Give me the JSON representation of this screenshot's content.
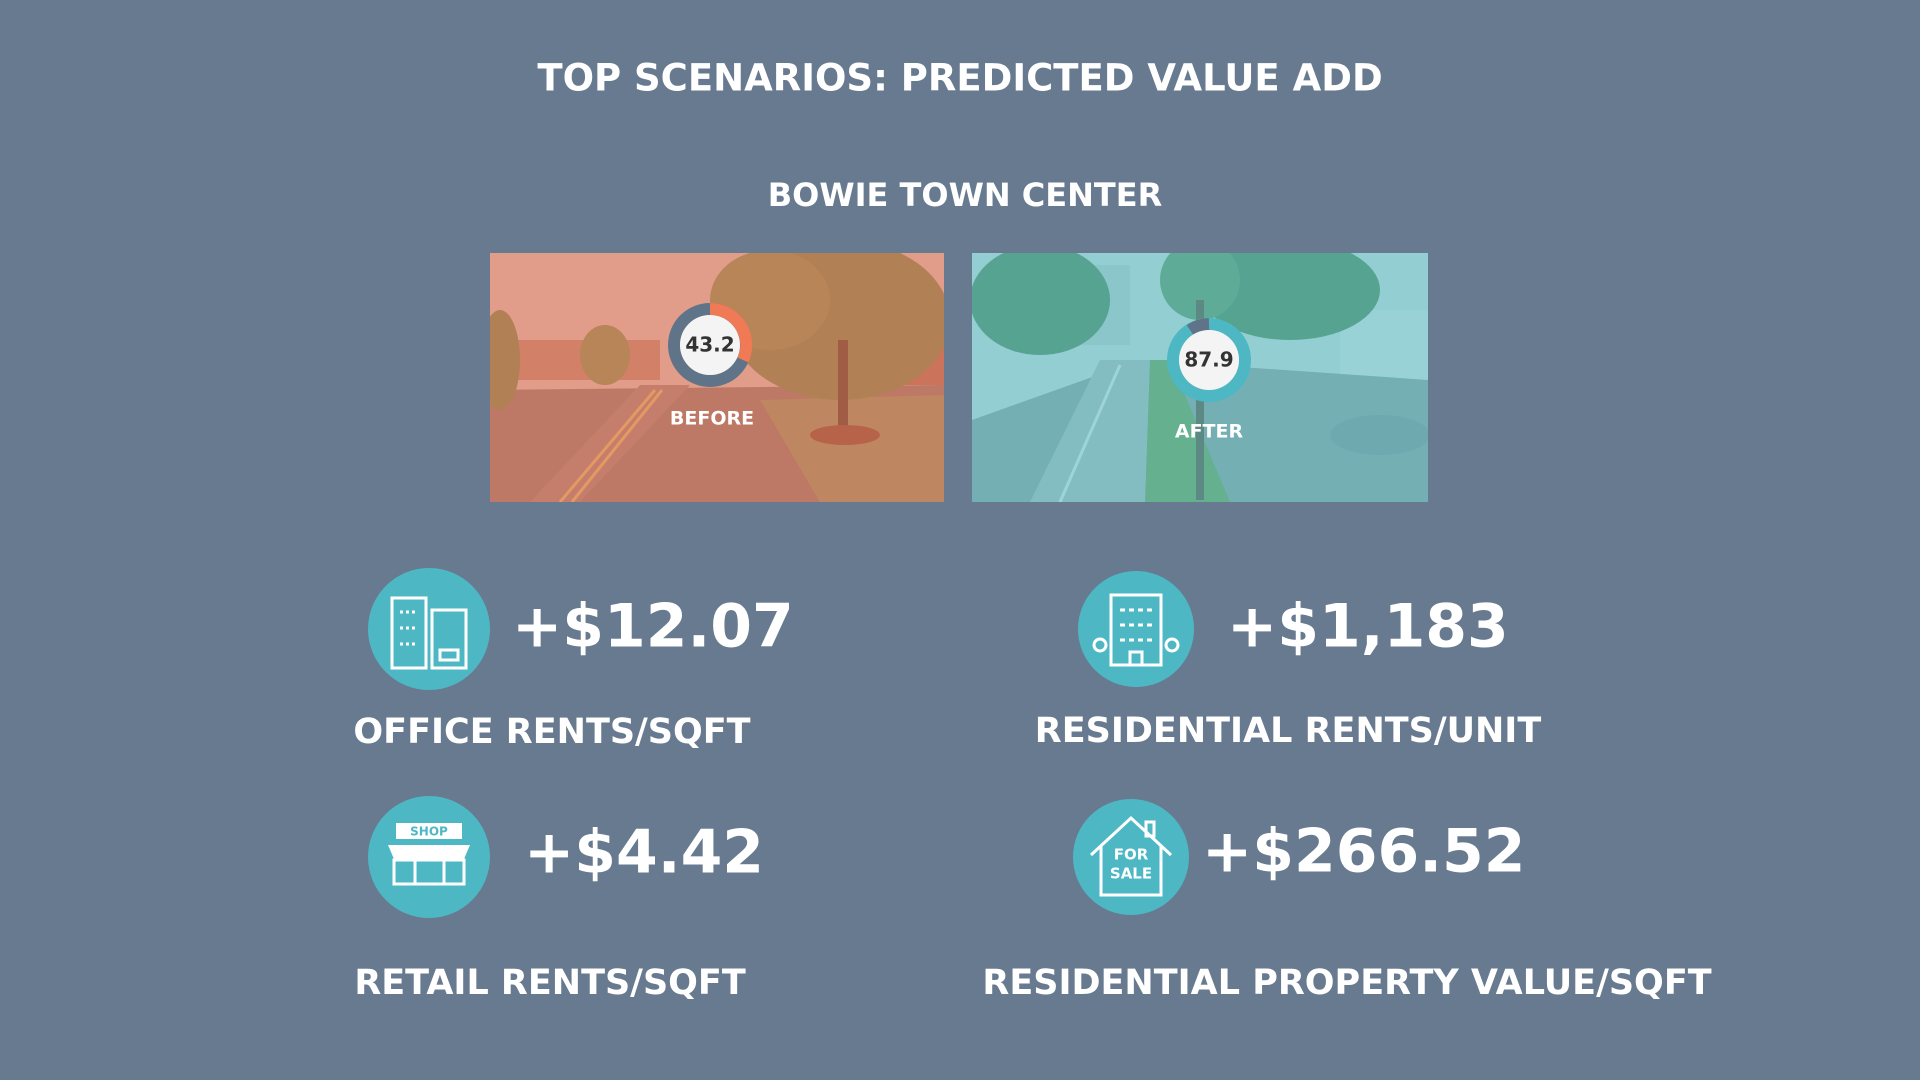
{
  "title": "TOP SCENARIOS: PREDICTED VALUE ADD",
  "location": "BOWIE TOWN CENTER",
  "scenarios": [
    {
      "label": "BEFORE",
      "score": 43.2
    },
    {
      "label": "AFTER",
      "score": 87.9
    }
  ],
  "metrics": [
    {
      "value": "+$12.07",
      "label": "OFFICE RENTS/SQFT"
    },
    {
      "value": "+$1,183",
      "label": "RESIDENTIAL RENTS/UNIT"
    },
    {
      "value": "+$4.42",
      "label": "RETAIL RENTS/SQFT",
      "icon_text": "SHOP"
    },
    {
      "value": "+$266.52",
      "label": "RESIDENTIAL PROPERTY VALUE/SQFT",
      "icon_text": [
        "FOR",
        "SALE"
      ]
    }
  ]
}
